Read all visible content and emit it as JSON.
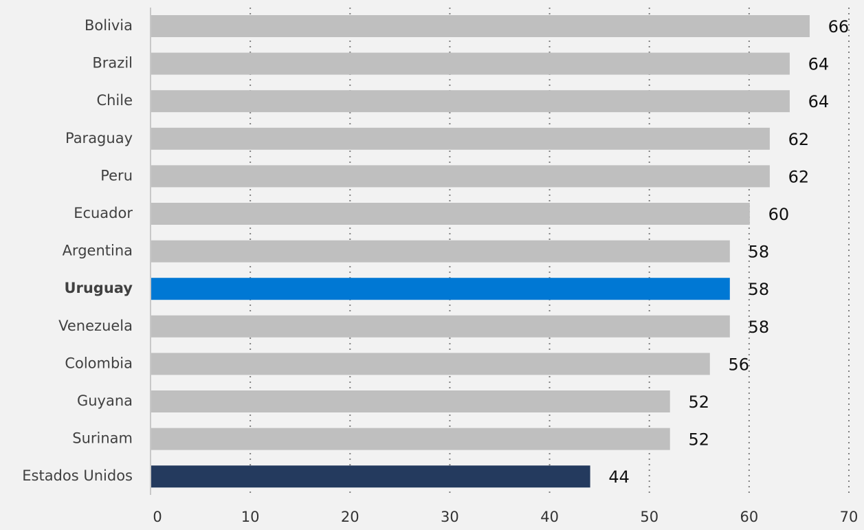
{
  "chart_data": {
    "type": "bar",
    "orientation": "horizontal",
    "categories": [
      "Bolivia",
      "Brazil",
      "Chile",
      "Paraguay",
      "Peru",
      "Ecuador",
      "Argentina",
      "Uruguay",
      "Venezuela",
      "Colombia",
      "Guyana",
      "Surinam",
      "Estados Unidos"
    ],
    "values": [
      66,
      64,
      64,
      62,
      62,
      60,
      58,
      58,
      58,
      56,
      52,
      52,
      44
    ],
    "colors": [
      "#bfbfbf",
      "#bfbfbf",
      "#bfbfbf",
      "#bfbfbf",
      "#bfbfbf",
      "#bfbfbf",
      "#bfbfbf",
      "#0078d4",
      "#bfbfbf",
      "#bfbfbf",
      "#bfbfbf",
      "#bfbfbf",
      "#243a5e"
    ],
    "label_colors": [
      "#404040",
      "#404040",
      "#404040",
      "#404040",
      "#404040",
      "#404040",
      "#404040",
      "#0078d4",
      "#404040",
      "#404040",
      "#404040",
      "#404040",
      "#404040"
    ],
    "xlim": [
      0,
      70
    ],
    "xticks": [
      0,
      10,
      20,
      30,
      40,
      50,
      60,
      70
    ],
    "grid": true
  }
}
